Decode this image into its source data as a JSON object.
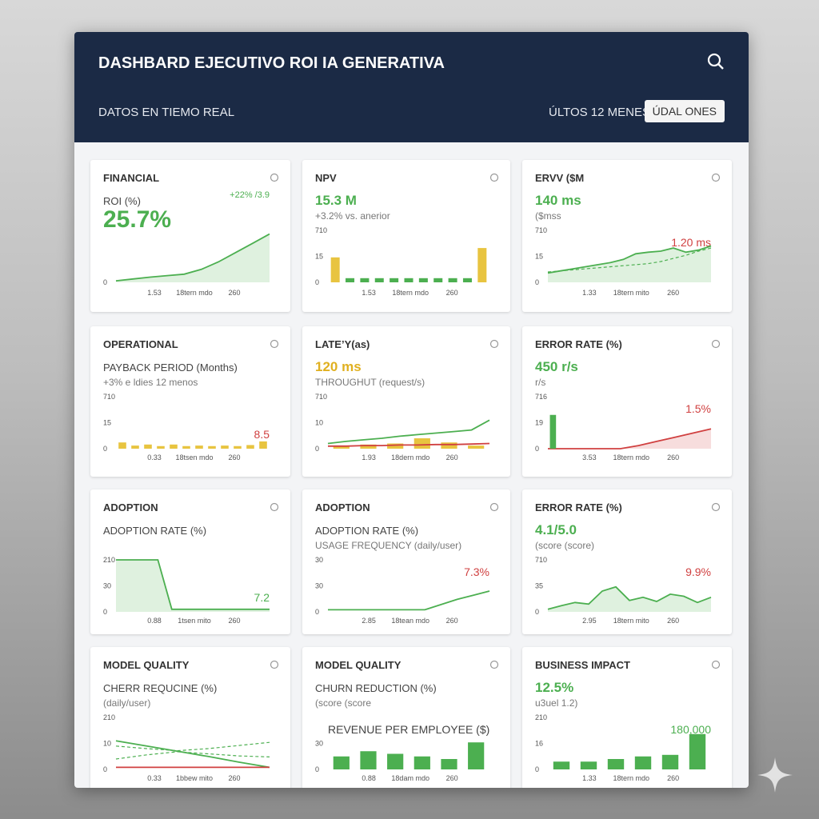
{
  "header": {
    "title": "DASHBARD EJECUTIVO ROI IA GENERATIVA",
    "subtitle": "DATOS EN TIEMO REAL",
    "period": "ÚLTOS 12 MENES",
    "button": "ÚDAL ONES"
  },
  "cards": [
    {
      "section": "FINANCIAL",
      "lines": [
        {
          "text": "ROI (%)",
          "style": "label"
        },
        {
          "text": "25.7%",
          "style": "big",
          "color": "#4caf50"
        }
      ],
      "annotation": "+22% /3.9",
      "annotation_color": "#4caf50",
      "annotation_position": "top",
      "yticks": [
        "0"
      ],
      "xticks": [
        "1.53",
        "18tern mdo",
        "260"
      ],
      "chart": {
        "ylim": [
          0,
          140
        ],
        "series": [
          {
            "type": "area",
            "color": "#4caf50",
            "values": [
              4,
              9,
              14,
              18,
              22,
              35,
              55,
              80,
              105,
              130
            ]
          }
        ]
      }
    },
    {
      "section": "NPV",
      "lines": [
        {
          "text": "15.3 M",
          "style": "value",
          "color": "#4caf50"
        },
        {
          "text": "+3.2% vs. anerior",
          "style": "note"
        }
      ],
      "yticks": [
        "710",
        "15",
        "0"
      ],
      "xticks": [
        "1.53",
        "18tern mdo",
        "260"
      ],
      "chart": {
        "ylim": [
          0,
          100
        ],
        "series": [
          {
            "type": "bar",
            "colors": [
              "#e8c440",
              "#4caf50",
              "#4caf50",
              "#4caf50",
              "#4caf50",
              "#4caf50",
              "#4caf50",
              "#4caf50",
              "#4caf50",
              "#4caf50",
              "#e8c440"
            ],
            "values": [
              48,
              8,
              8,
              8,
              8,
              8,
              8,
              8,
              8,
              8,
              66
            ]
          }
        ]
      }
    },
    {
      "section": "ERVV ($M",
      "lines": [
        {
          "text": "140 ms",
          "style": "value",
          "color": "#4caf50"
        },
        {
          "text": "($mss",
          "style": "note"
        }
      ],
      "annotation": "1.20 ms",
      "annotation_color": "#d04040",
      "annotation_position": "mid",
      "yticks": [
        "710",
        "15",
        "0"
      ],
      "xticks": [
        "1.33",
        "18tern mito",
        "260"
      ],
      "chart": {
        "ylim": [
          0,
          100
        ],
        "series": [
          {
            "type": "area",
            "color": "#4caf50",
            "values": [
              18,
              22,
              26,
              30,
              34,
              38,
              44,
              55,
              58,
              60,
              66,
              58,
              62,
              70
            ]
          },
          {
            "type": "dashed",
            "color": "#4caf50",
            "values": [
              20,
              22,
              24,
              26,
              28,
              30,
              32,
              34,
              36,
              40,
              46,
              52,
              60,
              66
            ]
          }
        ]
      }
    },
    {
      "section": "OPERATIONAL",
      "lines": [
        {
          "text": "PAYBACK PERIOD (Months)",
          "style": "label"
        },
        {
          "text": "+3% e ldies 12 menos",
          "style": "note"
        }
      ],
      "annotation": "8.5",
      "annotation_color": "#d04040",
      "annotation_position": "low",
      "yticks": [
        "710",
        "15",
        "0"
      ],
      "xticks": [
        "0.33",
        "18tsen mdo",
        "260"
      ],
      "chart": {
        "ylim": [
          0,
          100
        ],
        "series": [
          {
            "type": "bar",
            "colors": [
              "#e8c440"
            ],
            "values": [
              12,
              6,
              8,
              5,
              8,
              5,
              6,
              5,
              6,
              5,
              7,
              14
            ]
          }
        ]
      }
    },
    {
      "section": "LATE’Y(as)",
      "lines": [
        {
          "text": "120 ms",
          "style": "value",
          "color": "#e0b020"
        },
        {
          "text": "THROUGHUT (request/s)",
          "style": "note"
        }
      ],
      "yticks": [
        "710",
        "10",
        "0"
      ],
      "xticks": [
        "1.93",
        "18dern mdo",
        "260"
      ],
      "chart": {
        "ylim": [
          0,
          100
        ],
        "series": [
          {
            "type": "bar",
            "colors": [
              "#e8c440"
            ],
            "values": [
              6,
              8,
              10,
              20,
              12,
              6
            ]
          },
          {
            "type": "line",
            "color": "#4caf50",
            "values": [
              10,
              14,
              17,
              20,
              24,
              27,
              30,
              33,
              36,
              55
            ]
          },
          {
            "type": "line",
            "color": "#d04040",
            "values": [
              5,
              5,
              6,
              6,
              7,
              7,
              8,
              8,
              9,
              10
            ]
          }
        ]
      }
    },
    {
      "section": "ERROR RATE (%)",
      "lines": [
        {
          "text": "450 r/s",
          "style": "value",
          "color": "#4caf50"
        },
        {
          "text": "r/s",
          "style": "note"
        }
      ],
      "annotation": "1.5%",
      "annotation_color": "#d04040",
      "annotation_position": "mid",
      "yticks": [
        "716",
        "19",
        "0"
      ],
      "xticks": [
        "3.53",
        "18tern mdo",
        "260"
      ],
      "chart": {
        "ylim": [
          0,
          100
        ],
        "series": [
          {
            "type": "area",
            "color": "#d04040",
            "values": [
              0,
              0,
              0,
              0,
              0,
              6,
              14,
              22,
              30,
              38
            ]
          },
          {
            "type": "bar",
            "colors": [
              "#4caf50"
            ],
            "values": [
              65,
              null,
              null,
              null,
              null,
              null,
              null,
              null,
              null,
              null,
              null,
              null,
              null,
              null,
              null,
              null
            ]
          }
        ]
      }
    },
    {
      "section": "ADOPTION",
      "lines": [
        {
          "text": "ADOPTION RATE (%)",
          "style": "label"
        }
      ],
      "annotation": "7.2",
      "annotation_color": "#4caf50",
      "annotation_position": "low",
      "yticks": [
        "210",
        "30",
        "0"
      ],
      "xticks": [
        "0.88",
        "1tsen mito",
        "260"
      ],
      "chart": {
        "ylim": [
          0,
          100
        ],
        "series": [
          {
            "type": "area",
            "color": "#4caf50",
            "values": [
              100,
              100,
              100,
              100,
              5,
              5,
              5,
              5,
              5,
              5,
              5,
              5
            ]
          }
        ]
      }
    },
    {
      "section": "ADOPTION",
      "lines": [
        {
          "text": "ADOPTION RATE (%)",
          "style": "label"
        },
        {
          "text": "USAGE FREQUENCY (daily/user)",
          "style": "note"
        }
      ],
      "annotation": "7.3%",
      "annotation_color": "#d04040",
      "annotation_position": "mid",
      "yticks": [
        "30",
        "30",
        "0"
      ],
      "xticks": [
        "2.85",
        "18tean mdo",
        "260"
      ],
      "chart": {
        "ylim": [
          0,
          100
        ],
        "series": [
          {
            "type": "line",
            "color": "#4caf50",
            "values": [
              4,
              4,
              4,
              4,
              4,
              4,
              4,
              14,
              24,
              32,
              40
            ]
          }
        ]
      }
    },
    {
      "section": "ERROR RATE (%)",
      "lines": [
        {
          "text": "4.1/5.0",
          "style": "value",
          "color": "#4caf50"
        },
        {
          "text": "(score (score)",
          "style": "note"
        }
      ],
      "annotation": "9.9%",
      "annotation_color": "#d04040",
      "annotation_position": "mid",
      "yticks": [
        "710",
        "35",
        "0"
      ],
      "xticks": [
        "2.95",
        "18tern mito",
        "260"
      ],
      "chart": {
        "ylim": [
          0,
          100
        ],
        "series": [
          {
            "type": "area",
            "color": "#4caf50",
            "values": [
              5,
              12,
              18,
              15,
              40,
              48,
              22,
              28,
              20,
              34,
              30,
              18,
              28
            ]
          }
        ]
      }
    },
    {
      "section": "MODEL QUALITY",
      "lines": [
        {
          "text": "CHERR REQUCINE (%)",
          "style": "label"
        },
        {
          "text": "(daily/user)",
          "style": "note"
        }
      ],
      "yticks": [
        "210",
        "10",
        "0"
      ],
      "xticks": [
        "0.33",
        "1bbew mito",
        "260"
      ],
      "chart": {
        "ylim": [
          0,
          100
        ],
        "series": [
          {
            "type": "line",
            "color": "#4caf50",
            "values": [
              55,
              45,
              35,
              25,
              14,
              4
            ]
          },
          {
            "type": "dashed",
            "color": "#4caf50",
            "values": [
              45,
              40,
              36,
              40,
              46,
              52
            ]
          },
          {
            "type": "dashed",
            "color": "#4caf50",
            "values": [
              20,
              28,
              34,
              30,
              26,
              24
            ]
          },
          {
            "type": "line",
            "color": "#d04040",
            "values": [
              4,
              4,
              4,
              4,
              4,
              4
            ]
          }
        ]
      }
    },
    {
      "section": "MODEL QUALITY",
      "lines": [
        {
          "text": "CHURN REDUCTION (%)",
          "style": "label"
        },
        {
          "text": "(score (score",
          "style": "note"
        }
      ],
      "annotation": "REVENUE PER EMPLOYEE ($)",
      "annotation_color": "#444444",
      "annotation_position": "left",
      "yticks": [
        "",
        "30",
        "0"
      ],
      "xticks": [
        "0.88",
        "18dam mdo",
        "260"
      ],
      "chart": {
        "ylim": [
          0,
          100
        ],
        "series": [
          {
            "type": "bar",
            "colors": [
              "#4caf50"
            ],
            "values": [
              25,
              35,
              30,
              25,
              20,
              52
            ]
          }
        ]
      }
    },
    {
      "section": "BUSINESS IMPACT",
      "lines": [
        {
          "text": "12.5%",
          "style": "value",
          "color": "#4caf50"
        },
        {
          "text": "u3uel 1.2)",
          "style": "note"
        }
      ],
      "annotation": "180,000",
      "annotation_color": "#4caf50",
      "annotation_position": "mid",
      "yticks": [
        "210",
        "16",
        "0"
      ],
      "xticks": [
        "1.33",
        "18tern mdo",
        "260"
      ],
      "chart": {
        "ylim": [
          0,
          100
        ],
        "series": [
          {
            "type": "bar",
            "colors": [
              "#4caf50"
            ],
            "values": [
              15,
              15,
              20,
              25,
              28,
              68
            ]
          }
        ]
      }
    }
  ]
}
